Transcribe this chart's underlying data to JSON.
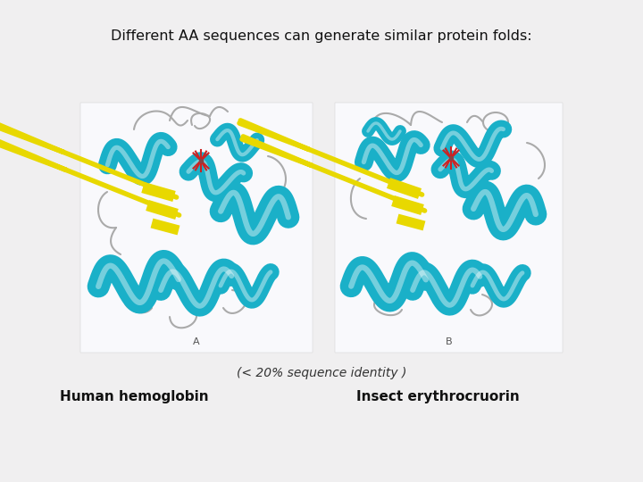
{
  "title": "Different AA sequences can generate similar protein folds:",
  "subtitle": "(< 20% sequence identity )",
  "label_left": "Human hemoglobin",
  "label_right": "Insect erythrocruorin",
  "label_A": "A",
  "label_B": "B",
  "slide_bg": "#f0eff0",
  "panel_bg": "#f8f8fa",
  "helix_color": "#1ab0c8",
  "beta_color": "#e8d800",
  "loop_color": "#aaaaaa",
  "heme_color": "#cc2222",
  "title_fontsize": 11.5,
  "subtitle_fontsize": 10,
  "label_fontsize": 11
}
